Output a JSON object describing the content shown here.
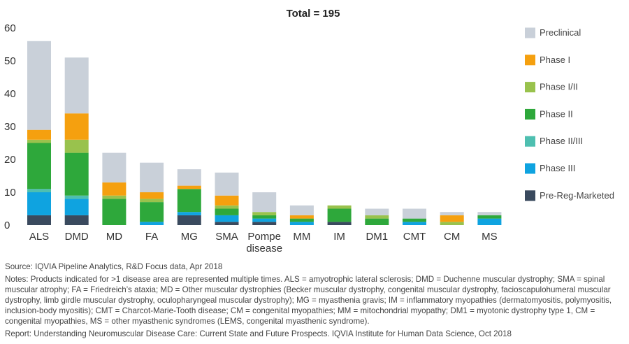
{
  "chart_data": {
    "type": "bar",
    "stacked": true,
    "title": "Total = 195",
    "xlabel": "",
    "ylabel": "",
    "ylim": [
      0,
      60
    ],
    "yticks": [
      0,
      10,
      20,
      30,
      40,
      50,
      60
    ],
    "grid": false,
    "legend_position": "right",
    "categories": [
      "ALS",
      "DMD",
      "MD",
      "FA",
      "MG",
      "SMA",
      "Pompe disease",
      "MM",
      "IM",
      "DM1",
      "CMT",
      "CM",
      "MS"
    ],
    "series": [
      {
        "name": "Pre-Reg-Marketed",
        "color": "#3a4a5e",
        "values": [
          3,
          3,
          0,
          0,
          3,
          1,
          1,
          0,
          1,
          0,
          0,
          0,
          0
        ]
      },
      {
        "name": "Phase III",
        "color": "#0fa3e0",
        "values": [
          7,
          5,
          0,
          1,
          1,
          2,
          1,
          1,
          0,
          0,
          1,
          0,
          2
        ]
      },
      {
        "name": "Phase II/III",
        "color": "#4ebfb0",
        "values": [
          1,
          1,
          0,
          0,
          0,
          0,
          0,
          0,
          0,
          0,
          0,
          0,
          0
        ]
      },
      {
        "name": "Phase II",
        "color": "#2ea83b",
        "values": [
          14,
          13,
          8,
          6,
          7,
          2,
          1,
          1,
          4,
          2,
          1,
          0,
          1
        ]
      },
      {
        "name": "Phase I/II",
        "color": "#99c24d",
        "values": [
          1,
          4,
          1,
          1,
          0,
          1,
          1,
          0,
          1,
          1,
          0,
          1,
          0
        ]
      },
      {
        "name": "Phase I",
        "color": "#f5a00f",
        "values": [
          3,
          8,
          4,
          2,
          1,
          3,
          0,
          1,
          0,
          0,
          0,
          2,
          0
        ]
      },
      {
        "name": "Preclinical",
        "color": "#c9d0d9",
        "values": [
          27,
          17,
          9,
          9,
          5,
          7,
          6,
          3,
          0,
          2,
          3,
          1,
          1
        ]
      }
    ]
  },
  "legend_order": [
    "Preclinical",
    "Phase I",
    "Phase I/II",
    "Phase II",
    "Phase II/III",
    "Phase III",
    "Pre-Reg-Marketed"
  ],
  "footer": {
    "source": "Source: IQVIA Pipeline Analytics, R&D Focus data, Apr 2018",
    "notes": "Notes: Products indicated for >1 disease area are represented multiple times. ALS = amyotrophic lateral sclerosis; DMD = Duchenne muscular dystrophy; SMA = spinal muscular atrophy; FA = Friedreich’s ataxia; MD = Other muscular dystrophies (Becker muscular dystrophy, congenital muscular dystrophy, facioscapulohumeral muscular dystrophy, limb girdle muscular dystrophy, oculopharyngeal muscular dystrophy); MG = myasthenia gravis; IM = inflammatory myopathies (dermatomyositis, polymyositis, inclusion-body myositis); CMT = Charcot-Marie-Tooth disease; CM = congenital myopathies; MM = mitochondrial myopathy; DM1 = myotonic dystrophy type 1, CM = congenital myopathies, MS = other myasthenic syndromes (LEMS, congenital myasthenic syndrome).",
    "report": "Report: Understanding Neuromuscular Disease Care: Current State and Future Prospects. IQVIA Institute for Human Data Science, Oct 2018"
  }
}
